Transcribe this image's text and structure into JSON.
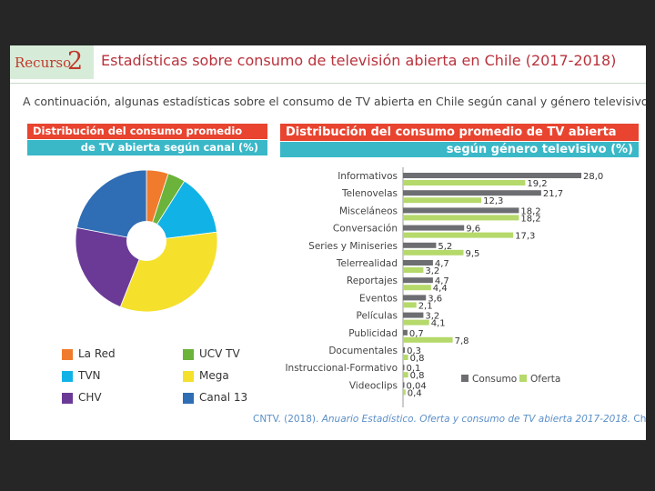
{
  "header": {
    "resource_word": "Recurso",
    "resource_number": "2",
    "title": "Estadísticas sobre consumo de televisión abierta en Chile (2017-2018)"
  },
  "intro": "A continuación, algunas estadísticas sobre el consumo de TV abierta en Chile según canal y género televisivo.",
  "pie_header": {
    "line1": "Distribución del consumo promedio",
    "line2": "de TV abierta según canal (%)"
  },
  "bar_header": {
    "line1": "Distribución del consumo promedio de TV abierta",
    "line2": "según género televisivo (%)"
  },
  "legend": [
    {
      "label": "La Red",
      "color": "#f07b2c"
    },
    {
      "label": "UCV TV",
      "color": "#6bb33a"
    },
    {
      "label": "TVN",
      "color": "#11b3e6"
    },
    {
      "label": "Mega",
      "color": "#f5e02c"
    },
    {
      "label": "CHV",
      "color": "#6b3a97"
    },
    {
      "label": "Canal 13",
      "color": "#2f6db4"
    }
  ],
  "colors": {
    "consumo": "#6d6e71",
    "oferta": "#b5d96a"
  },
  "chart_data": [
    {
      "type": "pie",
      "title": "Distribución del consumo promedio de TV abierta según canal (%)",
      "categories": [
        "La Red",
        "UCV TV",
        "TVN",
        "Mega",
        "CHV",
        "Canal 13"
      ],
      "values": [
        5,
        4,
        14,
        33,
        22,
        22
      ],
      "donut": true
    },
    {
      "type": "bar",
      "orientation": "horizontal",
      "title": "Distribución del consumo promedio de TV abierta según género televisivo (%)",
      "categories": [
        "Informativos",
        "Telenovelas",
        "Misceláneos",
        "Conversación",
        "Series y Miniseries",
        "Telerrealidad",
        "Reportajes",
        "Eventos",
        "Películas",
        "Publicidad",
        "Documentales",
        "Instruccional-Formativo",
        "Videoclips"
      ],
      "series": [
        {
          "name": "Consumo",
          "values": [
            28.0,
            21.7,
            18.2,
            9.6,
            5.2,
            4.7,
            4.7,
            3.6,
            3.2,
            0.7,
            0.3,
            0.1,
            0.04
          ],
          "labels": [
            "28,0",
            "21,7",
            "18,2",
            "9,6",
            "5,2",
            "4,7",
            "4,7",
            "3,6",
            "3,2",
            "0,7",
            "0,3",
            "0,1",
            "0,04"
          ]
        },
        {
          "name": "Oferta",
          "values": [
            19.2,
            12.3,
            18.2,
            17.3,
            9.5,
            3.2,
            4.4,
            2.1,
            4.1,
            7.8,
            0.8,
            0.8,
            0.4
          ],
          "labels": [
            "19,2",
            "12,3",
            "18,2",
            "17,3",
            "9,5",
            "3,2",
            "4,4",
            "2,1",
            "4,1",
            "7,8",
            "0,8",
            "0,8",
            "0,4"
          ]
        }
      ],
      "legend_position": "bottom-right"
    }
  ],
  "source": {
    "author": "CNTV. (2018).",
    "work": "Anuario Estadístico. Oferta y consumo de TV abierta 2017-2018.",
    "place": "Chile: CNTV."
  }
}
